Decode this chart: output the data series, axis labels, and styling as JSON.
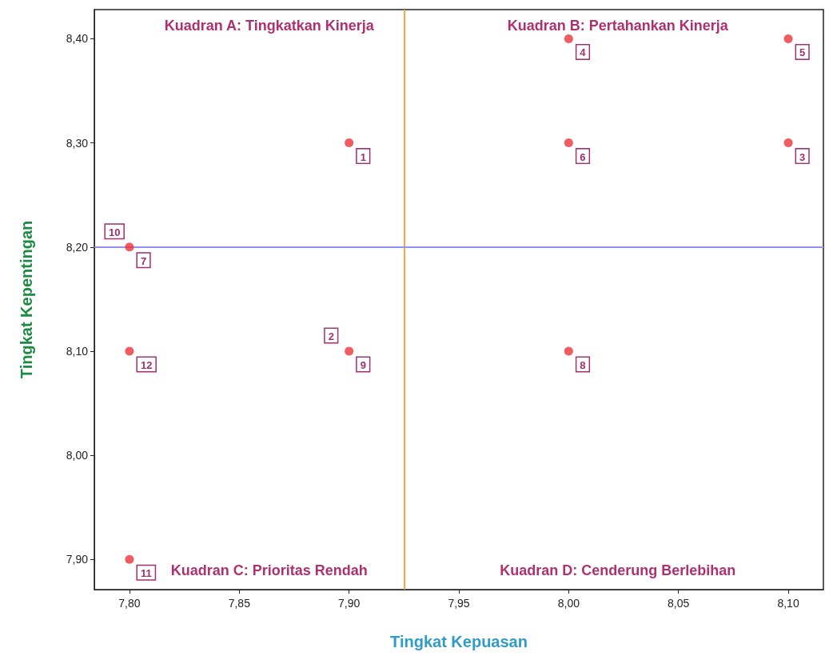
{
  "chart_data": {
    "type": "scatter",
    "xlabel": "Tingkat Kepuasan",
    "ylabel": "Tingkat Kepentingan",
    "x": [
      7.9,
      8.1,
      8.0,
      8.1,
      8.0,
      7.8,
      8.0,
      7.9,
      7.8,
      7.8
    ],
    "series": [
      {
        "color": "#ee3338",
        "values": [
          8.3,
          8.3,
          8.4,
          8.4,
          8.3,
          8.2,
          8.1,
          8.1,
          7.9,
          8.1
        ]
      }
    ],
    "xlim": [
      7.784,
      8.116
    ],
    "ylim": [
      7.871,
      8.428
    ],
    "xticks": [
      {
        "value": 7.8,
        "label": "7,80"
      },
      {
        "value": 7.85,
        "label": "7,85"
      },
      {
        "value": 7.9,
        "label": "7,90"
      },
      {
        "value": 7.95,
        "label": "7,95"
      },
      {
        "value": 8.0,
        "label": "8,00"
      },
      {
        "value": 8.05,
        "label": "8,05"
      },
      {
        "value": 8.1,
        "label": "8,10"
      }
    ],
    "yticks": [
      {
        "value": 7.9,
        "label": "7,90"
      },
      {
        "value": 8.0,
        "label": "8,00"
      },
      {
        "value": 8.1,
        "label": "8,10"
      },
      {
        "value": 8.2,
        "label": "8,20"
      },
      {
        "value": 8.3,
        "label": "8,30"
      },
      {
        "value": 8.4,
        "label": "8,40"
      }
    ],
    "ref_lines": [
      {
        "axis": "x",
        "value": 7.925,
        "color": "#f5a742"
      },
      {
        "axis": "y",
        "value": 8.2,
        "color": "#8f8ff5"
      }
    ],
    "annotations": [
      "Kuadran A: Tingkatkan Kinerja",
      "Kuadran B: Pertahankan Kinerja",
      "Kuadran C: Prioritas Rendah",
      "Kuadran D: Cenderung Berlebihan",
      {
        "text": "1",
        "x": 7.9,
        "y": 8.3
      },
      {
        "text": "3",
        "x": 8.1,
        "y": 8.3
      },
      {
        "text": "4",
        "x": 8.0,
        "y": 8.4
      },
      {
        "text": "5",
        "x": 8.1,
        "y": 8.4
      },
      {
        "text": "6",
        "x": 8.0,
        "y": 8.3
      },
      {
        "text": "7",
        "x": 7.8,
        "y": 8.2
      },
      {
        "text": "8",
        "x": 8.0,
        "y": 8.1
      },
      {
        "text": "9",
        "x": 7.9,
        "y": 8.1
      },
      {
        "text": "2",
        "x": 7.9,
        "y": 8.1
      },
      {
        "text": "10",
        "x": 7.8,
        "y": 8.2
      },
      {
        "text": "11",
        "x": 7.8,
        "y": 7.9
      },
      {
        "text": "12",
        "x": 7.8,
        "y": 8.1
      }
    ],
    "marker": "circle",
    "grid": false
  }
}
